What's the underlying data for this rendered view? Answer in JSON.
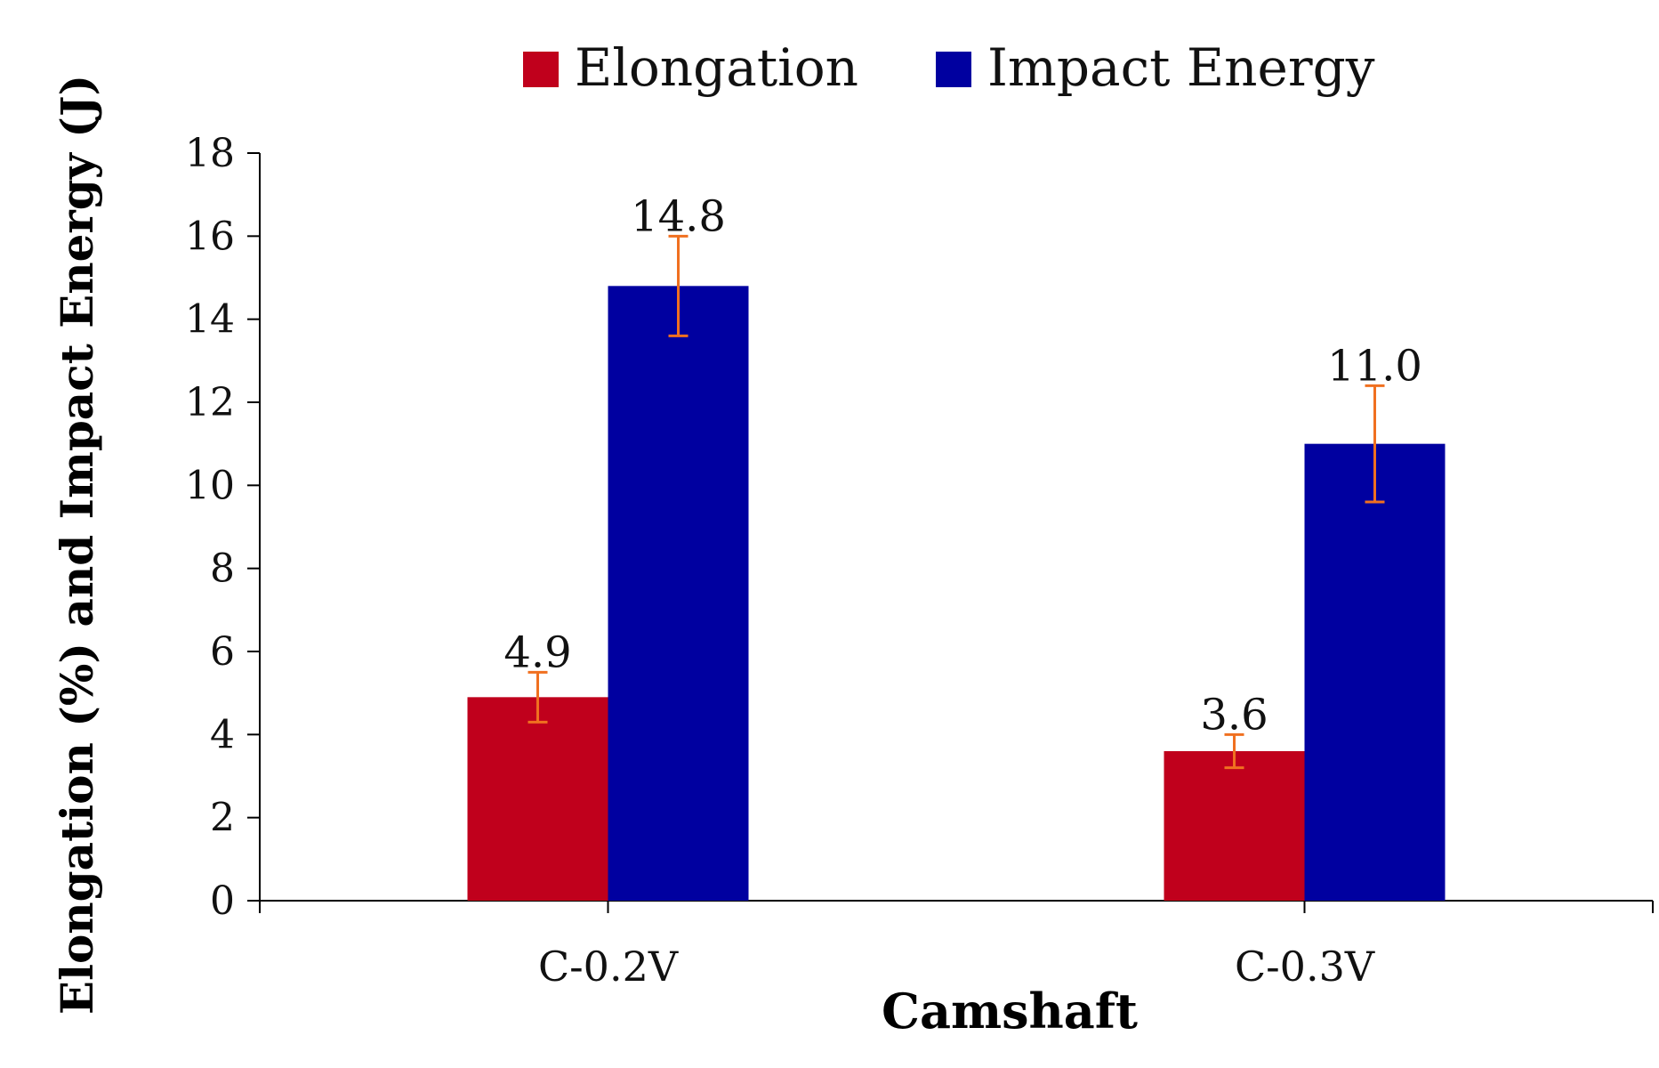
{
  "chart_data": {
    "type": "bar",
    "title": "",
    "xlabel": "Camshaft",
    "ylabel": "Elongation (%) and Impact Energy (J)",
    "categories": [
      "C-0.2V",
      "C-0.3V"
    ],
    "ylim": [
      0,
      18
    ],
    "yticks": [
      0,
      2,
      4,
      6,
      8,
      10,
      12,
      14,
      16,
      18
    ],
    "grid": false,
    "legend_position": "top",
    "series": [
      {
        "name": "Elongation",
        "color": "#c0001c",
        "values": [
          4.9,
          3.6
        ],
        "labels": [
          "4.9",
          "3.6"
        ],
        "error": [
          0.6,
          0.4
        ]
      },
      {
        "name": "Impact Energy",
        "color": "#0000a0",
        "values": [
          14.8,
          11.0
        ],
        "labels": [
          "14.8",
          "11.0"
        ],
        "error": [
          1.2,
          1.4
        ]
      }
    ],
    "error_bar_color": "#f07020"
  }
}
